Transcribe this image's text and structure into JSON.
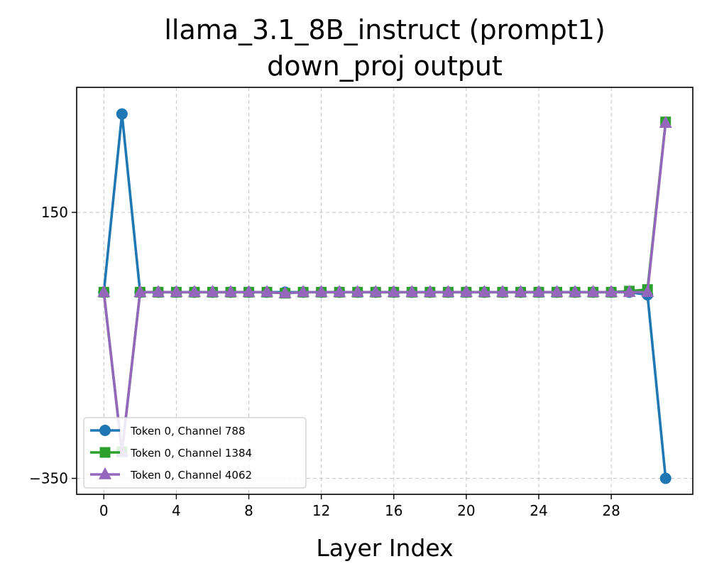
{
  "chart_data": {
    "type": "line",
    "title": "llama_3.1_8B_instruct (prompt1)",
    "subtitle": "down_proj output",
    "xlabel": "Layer Index",
    "ylabel": "",
    "xlim": [
      -1.5,
      32.5
    ],
    "ylim": [
      -380,
      385
    ],
    "xticks": [
      0,
      4,
      8,
      12,
      16,
      20,
      24,
      28
    ],
    "yticks": [
      -350,
      150
    ],
    "grid": true,
    "legend_position": "lower-left",
    "x": [
      0,
      1,
      2,
      3,
      4,
      5,
      6,
      7,
      8,
      9,
      10,
      11,
      12,
      13,
      14,
      15,
      16,
      17,
      18,
      19,
      20,
      21,
      22,
      23,
      24,
      25,
      25,
      26,
      27,
      28,
      29,
      30,
      31
    ],
    "series": [
      {
        "name": "Token 0, Channel 788",
        "color": "#1f77b4",
        "marker": "circle",
        "values": [
          0,
          335,
          0,
          0,
          0,
          0,
          0,
          0,
          0,
          0,
          0,
          0,
          0,
          0,
          0,
          0,
          0,
          0,
          0,
          0,
          0,
          0,
          0,
          0,
          0,
          0,
          0,
          0,
          0,
          0,
          0,
          -5,
          -350
        ]
      },
      {
        "name": "Token 0, Channel 1384",
        "color": "#2ca02c",
        "marker": "square",
        "values": [
          0,
          -300,
          0,
          0,
          0,
          0,
          0,
          0,
          0,
          0,
          -2,
          0,
          0,
          0,
          0,
          0,
          0,
          0,
          0,
          0,
          0,
          0,
          0,
          0,
          0,
          0,
          0,
          0,
          0,
          0,
          2,
          5,
          320
        ]
      },
      {
        "name": "Token 0, Channel 4062",
        "color": "#9467bd",
        "marker": "triangle",
        "values": [
          0,
          -300,
          0,
          0,
          0,
          0,
          0,
          0,
          0,
          0,
          -2,
          0,
          0,
          0,
          0,
          0,
          0,
          0,
          0,
          0,
          0,
          0,
          0,
          0,
          0,
          0,
          0,
          0,
          0,
          0,
          0,
          0,
          318
        ]
      }
    ]
  }
}
